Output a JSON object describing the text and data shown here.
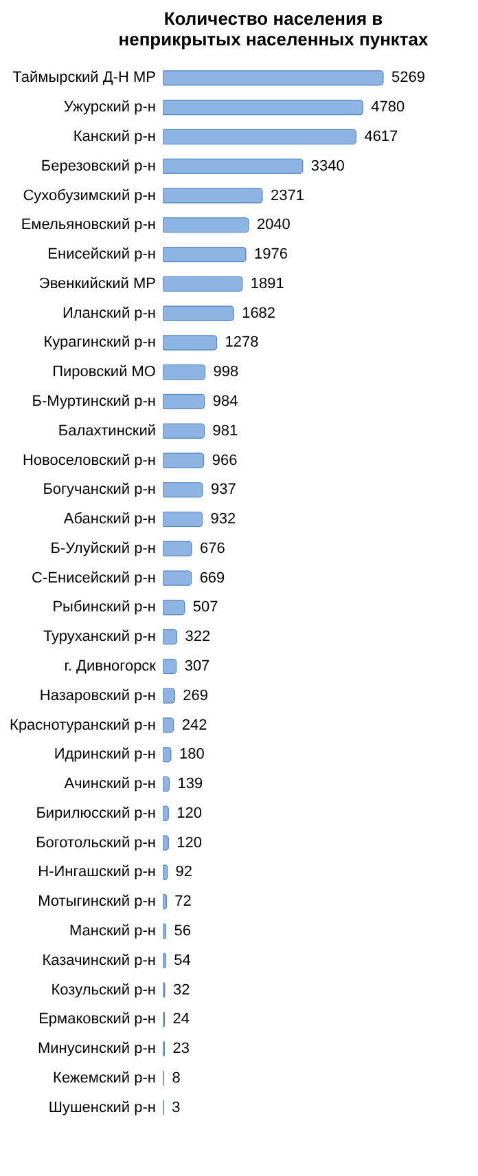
{
  "chart_data": {
    "type": "bar",
    "orientation": "horizontal",
    "title": "Количество населения в неприкрытых населенных пунктах",
    "categories": [
      "Таймырский Д-Н МР",
      "Ужурский р-н",
      "Канский р-н",
      "Березовский р-н",
      "Сухобузимский р-н",
      "Емельяновский р-н",
      "Енисейский р-н",
      "Эвенкийский МР",
      "Иланский р-н",
      "Курагинский р-н",
      "Пировский МО",
      "Б-Муртинский р-н",
      "Балахтинский",
      "Новоселовский р-н",
      "Богучанский р-н",
      "Абанский р-н",
      "Б-Улуйский р-н",
      "С-Енисейский р-н",
      "Рыбинский р-н",
      "Туруханский р-н",
      "г. Дивногорск",
      "Назаровский р-н",
      "Краснотуранский р-н",
      "Идринский р-н",
      "Ачинский р-н",
      "Бирилюсский р-н",
      "Боготольский р-н",
      "Н-Ингашский р-н",
      "Мотыгинский р-н",
      "Манский р-н",
      "Казачинский р-н",
      "Козульский р-н",
      "Ермаковский р-н",
      "Минусинский р-н",
      "Кежемский р-н",
      "Шушенский р-н"
    ],
    "values": [
      5269,
      4780,
      4617,
      3340,
      2371,
      2040,
      1976,
      1891,
      1682,
      1278,
      998,
      984,
      981,
      966,
      937,
      932,
      676,
      669,
      507,
      322,
      307,
      269,
      242,
      180,
      139,
      120,
      120,
      92,
      72,
      56,
      54,
      32,
      24,
      23,
      8,
      3
    ],
    "color": "#8db4e2",
    "data_labels": true,
    "grid": false
  }
}
